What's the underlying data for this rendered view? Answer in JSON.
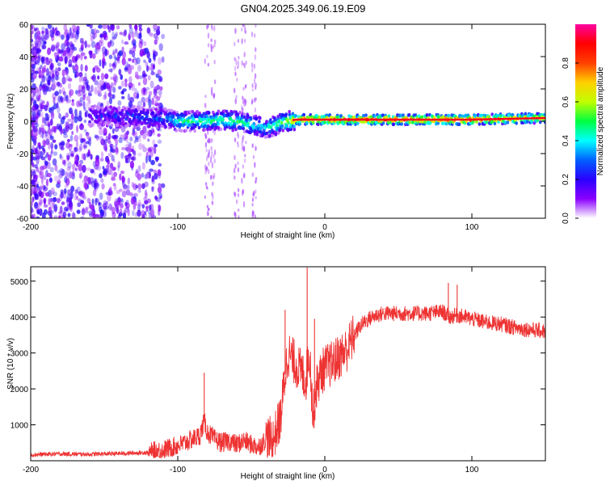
{
  "figure": {
    "title": "GN04.2025.349.06.19.E09"
  },
  "chart_data": [
    {
      "type": "heatmap",
      "title": "GN04.2025.349.06.19.E09",
      "xlabel": "Height of straight line (km)",
      "ylabel": "Frequency (Hz)",
      "xlim": [
        -200,
        150
      ],
      "ylim": [
        -60,
        60
      ],
      "xticks": [
        -200,
        -100,
        0,
        100
      ],
      "yticks": [
        -60,
        -40,
        -20,
        0,
        20,
        40,
        60
      ],
      "colorbar": {
        "label": "Normalized spectral amplitude",
        "range": [
          0,
          1
        ],
        "ticks": [
          0.0,
          0.2,
          0.4,
          0.6,
          0.8
        ],
        "colormap": [
          "#ffffff",
          "#8a00ff",
          "#2a00ff",
          "#0060ff",
          "#00ffff",
          "#00ff40",
          "#c0ff00",
          "#ffd000",
          "#ff4000",
          "#ff0000",
          "#ff00a0"
        ]
      },
      "ridge": {
        "x": [
          -150,
          -130,
          -110,
          -100,
          -90,
          -80,
          -70,
          -60,
          -50,
          -45,
          -40,
          -35,
          -30,
          -25,
          -20,
          -10,
          0,
          50,
          100,
          150
        ],
        "freq": [
          3,
          3,
          2,
          0,
          0,
          0,
          1,
          0,
          -2,
          -3,
          -4,
          -3,
          -1,
          0,
          1,
          1,
          1,
          1,
          1,
          2
        ],
        "amplitude": [
          0.2,
          0.25,
          0.3,
          0.45,
          0.45,
          0.5,
          0.5,
          0.5,
          0.45,
          0.4,
          0.4,
          0.45,
          0.55,
          0.6,
          0.75,
          0.85,
          0.85,
          0.85,
          0.85,
          0.7
        ]
      }
    },
    {
      "type": "line",
      "xlabel": "Height of straight line (km)",
      "ylabel": "SNR (10 * v/v)",
      "xlim": [
        -200,
        150
      ],
      "ylim": [
        0,
        5400
      ],
      "xticks": [
        -200,
        -100,
        0,
        100
      ],
      "yticks": [
        1000,
        2000,
        3000,
        4000,
        5000
      ],
      "series": [
        {
          "name": "SNR",
          "color": "#ee3333",
          "x": [
            -200,
            -180,
            -160,
            -140,
            -120,
            -110,
            -100,
            -95,
            -90,
            -85,
            -82,
            -80,
            -75,
            -70,
            -65,
            -60,
            -55,
            -50,
            -45,
            -40,
            -35,
            -30,
            -27,
            -25,
            -20,
            -15,
            -13,
            -11,
            -10,
            -8,
            -6,
            -3,
            0,
            5,
            10,
            15,
            20,
            25,
            30,
            35,
            40,
            50,
            60,
            70,
            80,
            85,
            90,
            95,
            100,
            110,
            120,
            130,
            140,
            150
          ],
          "y": [
            170,
            190,
            180,
            200,
            230,
            300,
            420,
            500,
            600,
            700,
            1100,
            800,
            600,
            500,
            550,
            450,
            560,
            450,
            380,
            600,
            600,
            1200,
            2400,
            3000,
            2700,
            2400,
            2200,
            3000,
            2800,
            1200,
            2000,
            2400,
            2600,
            2700,
            2900,
            3100,
            3500,
            3800,
            3950,
            4050,
            4100,
            4100,
            4100,
            4100,
            4150,
            4000,
            4050,
            4000,
            3950,
            3850,
            3800,
            3700,
            3650,
            3600
          ]
        }
      ],
      "spikes": [
        {
          "x": -82,
          "y": 2450
        },
        {
          "x": -27,
          "y": 4200
        },
        {
          "x": -12,
          "y": 5380
        },
        {
          "x": -7,
          "y": 3950
        },
        {
          "x": 84,
          "y": 4950
        },
        {
          "x": 90,
          "y": 4900
        }
      ]
    }
  ]
}
